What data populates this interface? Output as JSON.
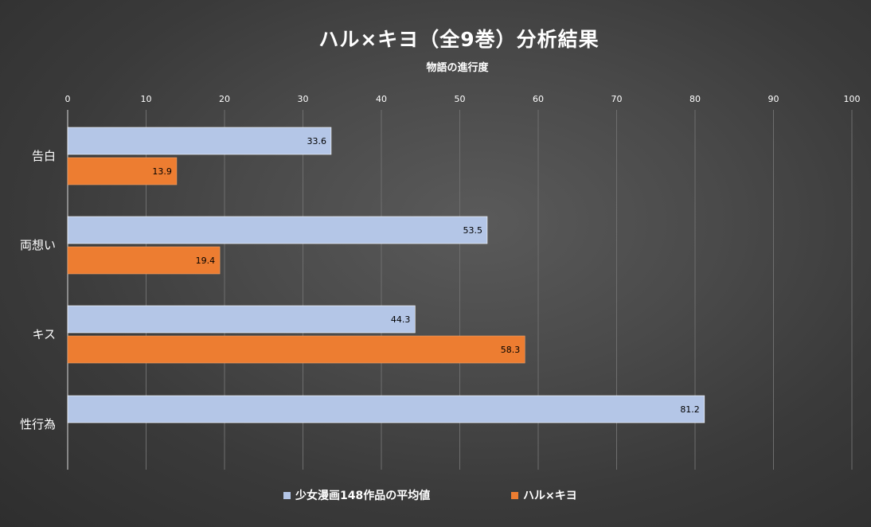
{
  "chart_data": {
    "type": "bar",
    "orientation": "horizontal",
    "title": "ハル×キヨ（全9巻）分析結果",
    "subtitle": "物語の進行度",
    "categories": [
      "告白",
      "両想い",
      "キス",
      "性行為"
    ],
    "series": [
      {
        "name": "少女漫画148作品の平均値",
        "color": "#b4c6e7",
        "values": [
          33.6,
          53.5,
          44.3,
          81.2
        ]
      },
      {
        "name": "ハル×キヨ",
        "color": "#ed7d31",
        "values": [
          13.9,
          19.4,
          58.3,
          null
        ]
      }
    ],
    "xlim": [
      0,
      100
    ],
    "xticks": [
      0,
      10,
      20,
      30,
      40,
      50,
      60,
      70,
      80,
      90,
      100
    ],
    "xaxis_position": "top",
    "grid": true,
    "legend_position": "bottom",
    "data_labels": true
  }
}
